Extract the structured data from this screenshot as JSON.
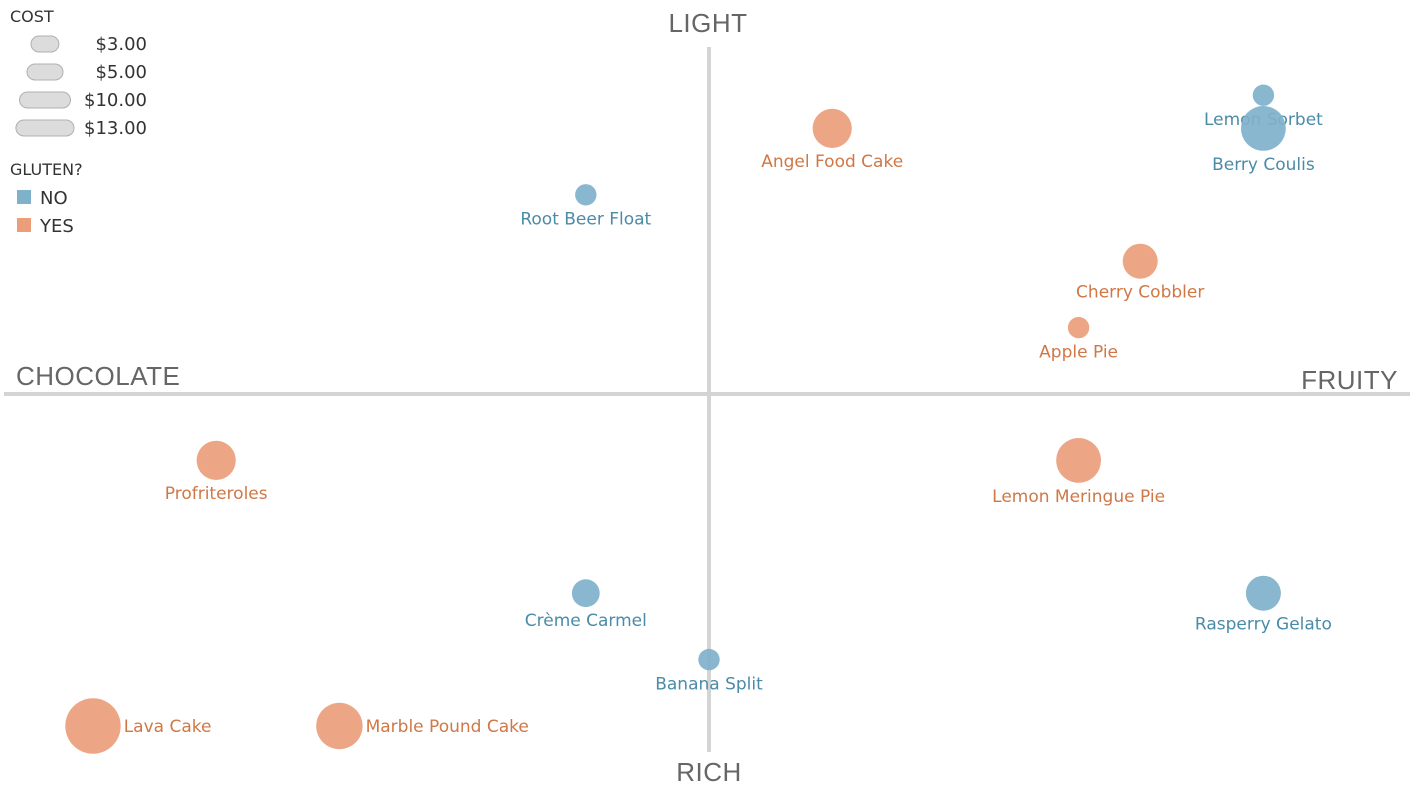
{
  "chart_data": {
    "type": "scatter",
    "title": "",
    "xlabel": "",
    "ylabel": "",
    "quadrant_labels": {
      "top": "LIGHT",
      "bottom": "RICH",
      "left": "CHOCOLATE",
      "right": "FRUITY"
    },
    "size_legend": {
      "title": "COST",
      "entries": [
        {
          "label": "$3.00",
          "value": 3
        },
        {
          "label": "$5.00",
          "value": 5
        },
        {
          "label": "$10.00",
          "value": 10
        },
        {
          "label": "$13.00",
          "value": 13
        }
      ]
    },
    "color_legend": {
      "title": "GLUTEN?",
      "entries": [
        {
          "label": "NO",
          "color": "#7fb1cb"
        },
        {
          "label": "YES",
          "color": "#ec9e7b"
        }
      ]
    },
    "label_colors": {
      "NO": "#4a8ba8",
      "YES": "#cf7846"
    },
    "points": [
      {
        "name": "Lemon Sorbet",
        "x": 9,
        "y": 9,
        "cost": 3,
        "gluten": "NO"
      },
      {
        "name": "Berry Coulis",
        "x": 9,
        "y": 8,
        "cost": 13,
        "gluten": "NO"
      },
      {
        "name": "Angel Food Cake",
        "x": 2,
        "y": 8,
        "cost": 10,
        "gluten": "YES"
      },
      {
        "name": "Root Beer Float",
        "x": -2,
        "y": 6,
        "cost": 3,
        "gluten": "NO"
      },
      {
        "name": "Cherry Cobbler",
        "x": 7,
        "y": 4,
        "cost": 8,
        "gluten": "YES"
      },
      {
        "name": "Apple Pie",
        "x": 6,
        "y": 2,
        "cost": 3,
        "gluten": "YES"
      },
      {
        "name": "Profriteroles",
        "x": -8,
        "y": -2,
        "cost": 10,
        "gluten": "YES"
      },
      {
        "name": "Lemon Meringue Pie",
        "x": 6,
        "y": -2,
        "cost": 13,
        "gluten": "YES"
      },
      {
        "name": "Crème Carmel",
        "x": -2,
        "y": -6,
        "cost": 5,
        "gluten": "NO"
      },
      {
        "name": "Rasperry Gelato",
        "x": 9,
        "y": -6,
        "cost": 8,
        "gluten": "NO"
      },
      {
        "name": "Banana Split",
        "x": 0,
        "y": -8,
        "cost": 3,
        "gluten": "NO"
      },
      {
        "name": "Lava Cake",
        "x": -10,
        "y": -10,
        "cost": 20,
        "gluten": "YES"
      },
      {
        "name": "Marble Pound Cake",
        "x": -6,
        "y": -10,
        "cost": 14,
        "gluten": "YES"
      }
    ]
  }
}
